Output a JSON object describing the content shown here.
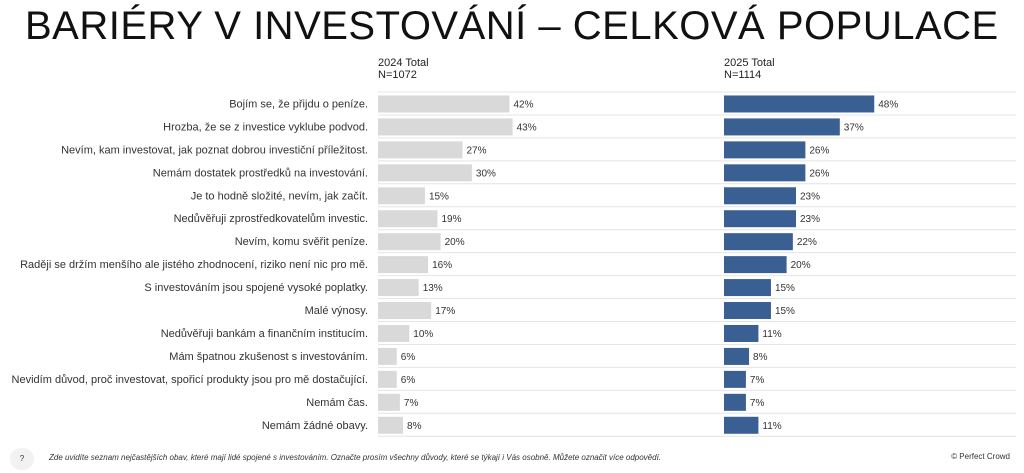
{
  "title": "BARIÉRY V INVESTOVÁNÍ – CELKOVÁ POPULACE",
  "columns": [
    {
      "label": "2024 Total",
      "n": "N=1072"
    },
    {
      "label": "2025 Total",
      "n": "N=1114"
    }
  ],
  "chart_data": {
    "type": "bar",
    "orientation": "horizontal",
    "xlim": [
      0,
      100
    ],
    "grid": false,
    "categories": [
      "Bojím se, že přijdu o peníze.",
      "Hrozba, že se z investice vyklube podvod.",
      "Nevím, kam investovat, jak poznat dobrou investiční příležitost.",
      "Nemám dostatek prostředků na investování.",
      "Je to hodně složité, nevím, jak začít.",
      "Nedůvěřuji zprostředkovatelům investic.",
      "Nevím, komu svěřit peníze.",
      "Raději se držím menšího ale jistého zhodnocení, riziko není nic pro mě.",
      "S investováním jsou spojené vysoké poplatky.",
      "Malé výnosy.",
      "Nedůvěřuji bankám a finančním institucím.",
      "Mám špatnou zkušenost s investováním.",
      "Nevidím důvod, proč investovat, spořicí produkty jsou pro mě dostačující.",
      "Nemám čas.",
      "Nemám žádné obavy."
    ],
    "series": [
      {
        "name": "2024 Total",
        "color": "#d9d9d9",
        "values": [
          42,
          43,
          27,
          30,
          15,
          19,
          20,
          16,
          13,
          17,
          10,
          6,
          6,
          7,
          8
        ]
      },
      {
        "name": "2025 Total",
        "color": "#3a5f93",
        "values": [
          48,
          37,
          26,
          26,
          23,
          23,
          22,
          20,
          15,
          15,
          11,
          8,
          7,
          7,
          11
        ]
      }
    ],
    "value_suffix": "%"
  },
  "footer": {
    "badge": "?",
    "note": "Zde uvidíte seznam nejčastějších obav, které mají lidé spojené s investováním.   Označte prosím všechny důvody, které se týkají i Vás osobně.   Můžete označit více odpovědí.",
    "copyright": "© Perfect Crowd"
  }
}
